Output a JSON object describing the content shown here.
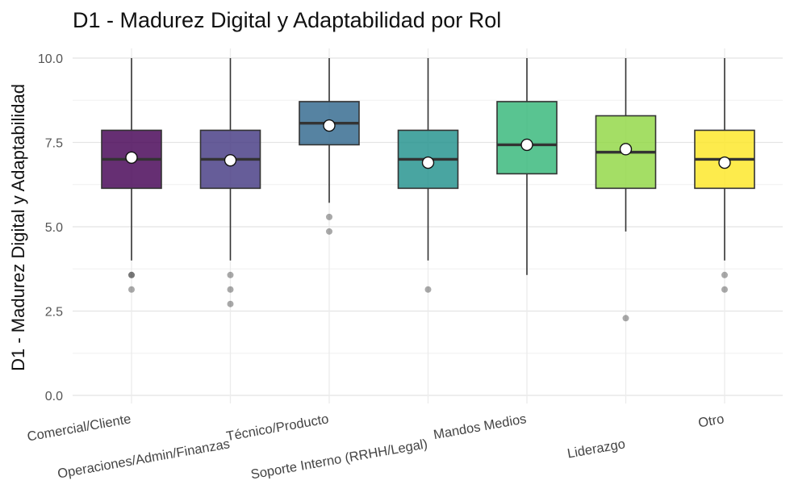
{
  "chart_data": {
    "type": "boxplot",
    "title": "D1 - Madurez Digital y Adaptabilidad por Rol",
    "xlabel": "",
    "ylabel": "D1 - Madurez Digital y Adaptabilidad",
    "ylim": [
      0,
      10
    ],
    "yticks": [
      "0.0",
      "2.5",
      "5.0",
      "7.5",
      "10.0"
    ],
    "grid": true,
    "legend": "none",
    "categories": [
      "Comercial/Cliente",
      "Operaciones/Admin/Finanzas",
      "Técnico/Producto",
      "Soporte Interno (RRHH/Legal)",
      "Mandos Medios",
      "Liderazgo",
      "Otro"
    ],
    "boxes": [
      {
        "category": "Comercial/Cliente",
        "whisker_low": 4.0,
        "q1": 6.14,
        "median": 7.0,
        "q3": 7.86,
        "whisker_high": 10.0,
        "mean": 7.05,
        "outliers": [
          3.57,
          3.57,
          3.14
        ],
        "color": "#440154"
      },
      {
        "category": "Operaciones/Admin/Finanzas",
        "whisker_low": 4.0,
        "q1": 6.14,
        "median": 7.0,
        "q3": 7.86,
        "whisker_high": 10.0,
        "mean": 6.97,
        "outliers": [
          3.57,
          3.14,
          2.71
        ],
        "color": "#443983"
      },
      {
        "category": "Técnico/Producto",
        "whisker_low": 5.71,
        "q1": 7.43,
        "median": 8.07,
        "q3": 8.71,
        "whisker_high": 10.0,
        "mean": 8.0,
        "outliers": [
          5.29,
          4.86
        ],
        "color": "#31688E"
      },
      {
        "category": "Soporte Interno (RRHH/Legal)",
        "whisker_low": 4.0,
        "q1": 6.14,
        "median": 7.0,
        "q3": 7.86,
        "whisker_high": 10.0,
        "mean": 6.9,
        "outliers": [
          3.14
        ],
        "color": "#21918C"
      },
      {
        "category": "Mandos Medios",
        "whisker_low": 3.57,
        "q1": 6.57,
        "median": 7.43,
        "q3": 8.71,
        "whisker_high": 10.0,
        "mean": 7.43,
        "outliers": [],
        "color": "#35B779"
      },
      {
        "category": "Liderazgo",
        "whisker_low": 4.86,
        "q1": 6.14,
        "median": 7.21,
        "q3": 8.29,
        "whisker_high": 10.0,
        "mean": 7.3,
        "outliers": [
          2.29
        ],
        "color": "#90D743"
      },
      {
        "category": "Otro",
        "whisker_low": 4.0,
        "q1": 6.14,
        "median": 7.0,
        "q3": 7.86,
        "whisker_high": 10.0,
        "mean": 6.9,
        "outliers": [
          3.57,
          3.14
        ],
        "color": "#FDE725"
      }
    ]
  }
}
